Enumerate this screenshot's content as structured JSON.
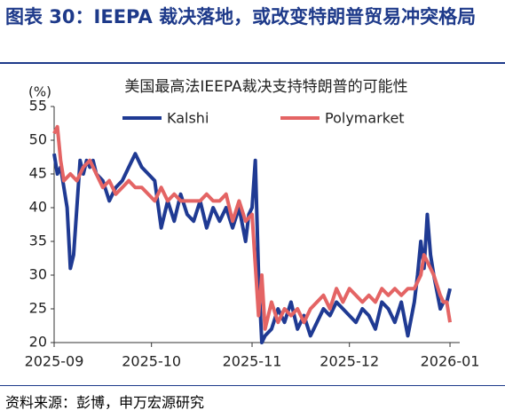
{
  "header": {
    "title": "图表 30：IEEPA 裁决落地，或改变特朗普贸易冲突格局"
  },
  "chart_data": {
    "type": "line",
    "title": "美国最高法IEEPA裁决支持特朗普的可能性",
    "ylabel": "(%)",
    "xlim": [
      0,
      125
    ],
    "ylim": [
      20,
      55
    ],
    "yticks": [
      20,
      25,
      30,
      35,
      40,
      45,
      50,
      55
    ],
    "xticks": [
      {
        "value": 0,
        "label": "2025-09"
      },
      {
        "value": 30,
        "label": "2025-10"
      },
      {
        "value": 61,
        "label": "2025-11"
      },
      {
        "value": 91,
        "label": "2025-12"
      },
      {
        "value": 122,
        "label": "2026-01"
      }
    ],
    "grid": false,
    "legend": "top",
    "series": [
      {
        "name": "Kalshi",
        "color": "#1f3a93",
        "x": [
          0,
          1,
          2,
          3,
          4,
          5,
          6,
          7,
          8,
          9,
          10,
          11,
          12,
          13,
          15,
          17,
          19,
          21,
          23,
          25,
          27,
          29,
          31,
          33,
          35,
          37,
          39,
          41,
          43,
          45,
          47,
          49,
          51,
          53,
          55,
          57,
          59,
          60,
          61,
          62,
          63,
          64,
          65,
          67,
          69,
          71,
          73,
          75,
          77,
          79,
          81,
          83,
          85,
          87,
          89,
          91,
          93,
          95,
          97,
          99,
          101,
          103,
          105,
          107,
          109,
          111,
          112,
          113,
          114,
          115,
          116,
          117,
          119,
          120,
          121,
          122
        ],
        "values": [
          48,
          45,
          46,
          43,
          40,
          31,
          33,
          40,
          47,
          45,
          47,
          46,
          47,
          45,
          44,
          41,
          43,
          44,
          46,
          48,
          46,
          45,
          44,
          37,
          41,
          38,
          42,
          39,
          38,
          41,
          37,
          40,
          38,
          40,
          37,
          40,
          35,
          39,
          40,
          47,
          30,
          20,
          21,
          22,
          25,
          23,
          26,
          22,
          24,
          21,
          23,
          25,
          24,
          26,
          25,
          24,
          23,
          25,
          24,
          22,
          26,
          25,
          23,
          26,
          21,
          26,
          30,
          35,
          31,
          39,
          33,
          30,
          25,
          26,
          26,
          28
        ]
      },
      {
        "name": "Polymarket",
        "color": "#e46464",
        "x": [
          0,
          1,
          2,
          3,
          5,
          7,
          9,
          11,
          13,
          15,
          17,
          19,
          21,
          23,
          25,
          27,
          29,
          31,
          33,
          35,
          37,
          39,
          41,
          43,
          45,
          47,
          49,
          51,
          53,
          55,
          57,
          59,
          61,
          63,
          64,
          65,
          67,
          69,
          71,
          73,
          75,
          77,
          79,
          81,
          83,
          85,
          87,
          89,
          91,
          93,
          95,
          97,
          99,
          101,
          103,
          105,
          107,
          109,
          111,
          113,
          114,
          115,
          116,
          117,
          119,
          120,
          121,
          122
        ],
        "values": [
          51,
          52,
          47,
          44,
          45,
          44,
          46,
          47,
          45,
          43,
          44,
          42,
          43,
          44,
          43,
          43,
          42,
          41,
          43,
          41,
          42,
          41,
          41,
          41,
          41,
          42,
          41,
          41,
          42,
          38,
          41,
          38,
          39,
          24,
          30,
          22,
          26,
          23,
          25,
          24,
          25,
          23,
          25,
          26,
          27,
          25,
          28,
          26,
          28,
          27,
          26,
          27,
          26,
          28,
          27,
          28,
          27,
          28,
          28,
          30,
          33,
          32,
          31,
          30,
          27,
          26,
          26,
          23
        ]
      }
    ]
  },
  "footer": {
    "source": "资料来源：彭博，申万宏源研究"
  }
}
